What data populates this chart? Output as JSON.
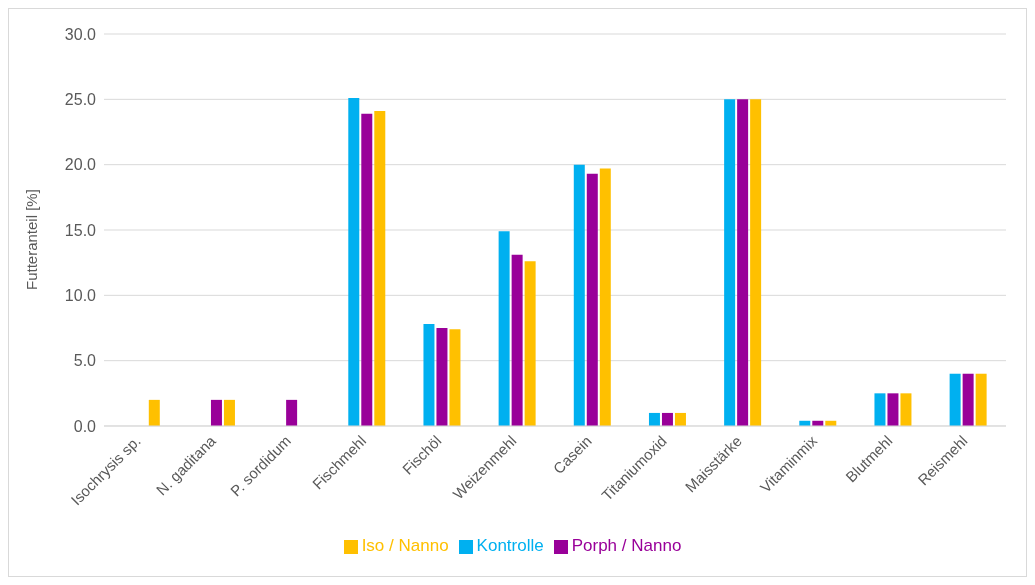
{
  "chart_data": {
    "type": "bar",
    "ylabel": "Futteranteil [%]",
    "categories": [
      "Isochrysis sp.",
      "N. gaditana",
      "P. sordidum",
      "Fischmehl",
      "Fischöl",
      "Weizenmehl",
      "Casein",
      "Titaniumoxid",
      "Maisstärke",
      "Vitaminmix",
      "Blutmehl",
      "Reismehl"
    ],
    "series": [
      {
        "name": "Kontrolle",
        "color": "#00b0f0",
        "values": [
          null,
          null,
          null,
          25.1,
          7.8,
          14.9,
          20.0,
          1.0,
          25.0,
          0.4,
          2.5,
          4.0
        ]
      },
      {
        "name": "Porph / Nanno",
        "color": "#990099",
        "values": [
          null,
          2.0,
          2.0,
          23.9,
          7.5,
          13.1,
          19.3,
          1.0,
          25.0,
          0.4,
          2.5,
          4.0
        ]
      },
      {
        "name": "Iso / Nanno",
        "color": "#ffc000",
        "values": [
          2.0,
          2.0,
          null,
          24.1,
          7.4,
          12.6,
          19.7,
          1.0,
          25.0,
          0.4,
          2.5,
          4.0
        ]
      }
    ],
    "ylim": [
      0,
      30
    ],
    "yticks": [
      {
        "value": 0,
        "label": "0.0"
      },
      {
        "value": 5,
        "label": "5.0"
      },
      {
        "value": 10,
        "label": "10.0"
      },
      {
        "value": 15,
        "label": "15.0"
      },
      {
        "value": 20,
        "label": "20.0"
      },
      {
        "value": 25,
        "label": "25.0"
      },
      {
        "value": 30,
        "label": "30.0"
      }
    ],
    "grid": "y",
    "legend": "bottom"
  }
}
